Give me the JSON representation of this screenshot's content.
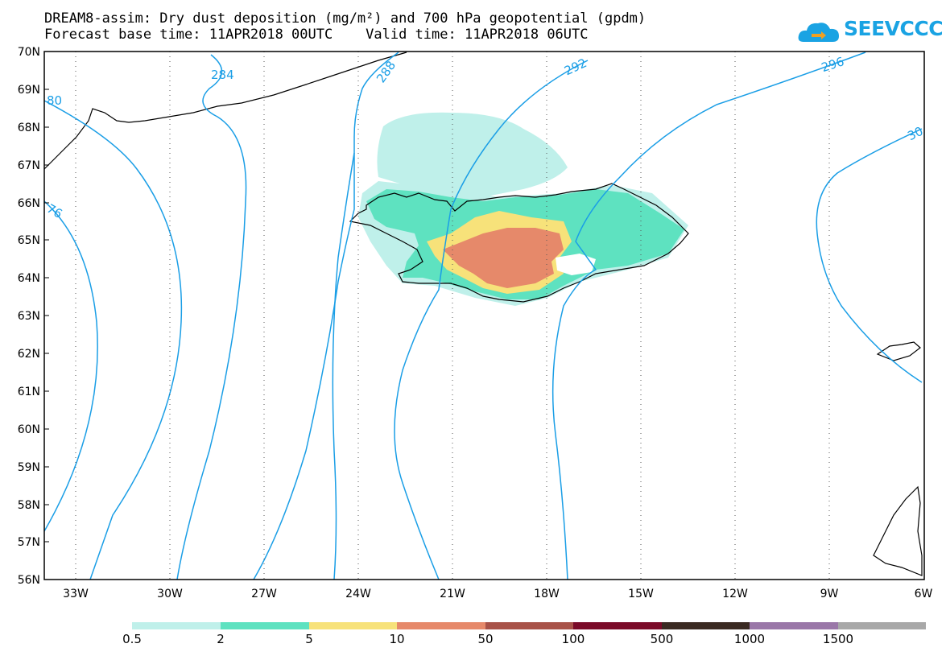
{
  "header": {
    "title_line1": "DREAM8-assim: Dry dust deposition (mg/m²) and 700 hPa geopotential (gpdm)",
    "title_line2": "Forecast base time: 11APR2018 00UTC    Valid time: 11APR2018 06UTC"
  },
  "logo": {
    "text": "SEEVCCC",
    "icon": "cloud-icon",
    "color": "#1aa3e3"
  },
  "map": {
    "lon_range": [
      -34,
      -6
    ],
    "lat_range": [
      56,
      70
    ],
    "lat_labels": [
      "70N",
      "69N",
      "68N",
      "67N",
      "66N",
      "65N",
      "64N",
      "63N",
      "62N",
      "61N",
      "60N",
      "59N",
      "58N",
      "57N",
      "56N"
    ],
    "lon_labels": [
      "33W",
      "30W",
      "27W",
      "24W",
      "21W",
      "18W",
      "15W",
      "12W",
      "9W",
      "6W"
    ],
    "contour_color": "#1a9ee6",
    "contour_labels": [
      "80",
      "284",
      "288",
      "292",
      "296",
      "30",
      "76"
    ]
  },
  "legend": {
    "colors": [
      "#bff0ea",
      "#5ee2c0",
      "#f7e27a",
      "#e6896a",
      "#a85248",
      "#7a0a28",
      "#3a2a22",
      "#9a77a8",
      "#a8a8a8"
    ],
    "labels": [
      "0.5",
      "2",
      "5",
      "10",
      "50",
      "100",
      "500",
      "1000",
      "1500"
    ]
  }
}
